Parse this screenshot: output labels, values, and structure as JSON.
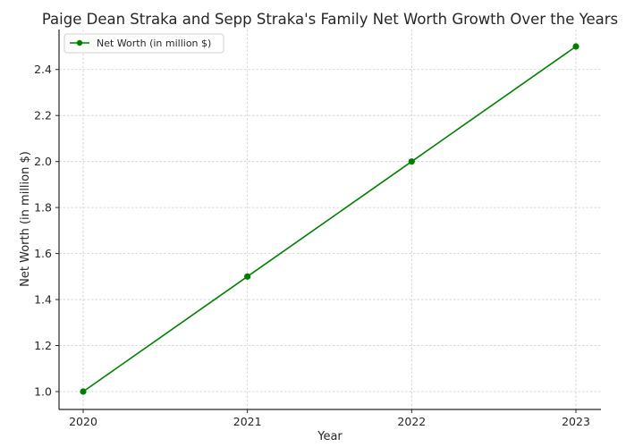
{
  "chart_data": {
    "type": "line",
    "title": "Paige Dean Straka and Sepp Straka's Family Net Worth Growth Over the Years",
    "xlabel": "Year",
    "ylabel": "Net Worth (in million $)",
    "categories": [
      "2020",
      "2021",
      "2022",
      "2023"
    ],
    "series": [
      {
        "name": "Net Worth (in million $)",
        "values": [
          1.0,
          1.5,
          2.0,
          2.5
        ],
        "color": "#008000",
        "marker": "circle"
      }
    ],
    "yticks": [
      "1.0",
      "1.2",
      "1.4",
      "1.6",
      "1.8",
      "2.0",
      "2.2",
      "2.4"
    ],
    "ylim": [
      0.925,
      2.575
    ],
    "grid": true,
    "legend_position": "upper left"
  }
}
